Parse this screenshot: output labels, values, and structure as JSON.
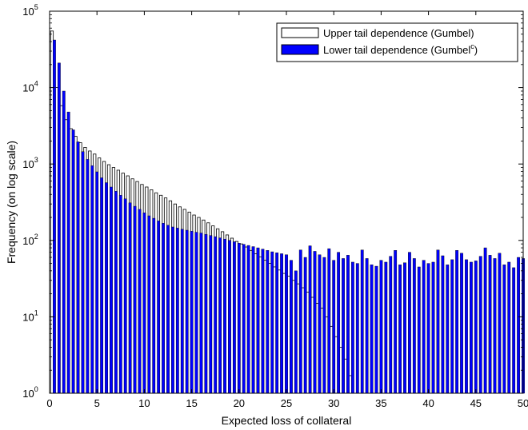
{
  "chart_data": {
    "type": "bar",
    "xlabel": "Expected loss of collateral",
    "ylabel": "Frequency (on log scale)",
    "yscale": "log",
    "xlim": [
      0,
      50
    ],
    "ylim": [
      1,
      100000
    ],
    "x_ticks": [
      "0",
      "5",
      "10",
      "15",
      "20",
      "25",
      "30",
      "35",
      "40",
      "45",
      "50"
    ],
    "y_ticks": [
      {
        "base": "10",
        "exp": "0"
      },
      {
        "base": "10",
        "exp": "1"
      },
      {
        "base": "10",
        "exp": "2"
      },
      {
        "base": "10",
        "exp": "3"
      },
      {
        "base": "10",
        "exp": "4"
      },
      {
        "base": "10",
        "exp": "5"
      }
    ],
    "grid": false,
    "legend_position": "top-right",
    "series": [
      {
        "name": "Upper tail dependence (Gumbel)",
        "legend_text": "Upper tail dependence (Gumbel)",
        "color": "#ffffff",
        "edge_color": "#000000",
        "x": [
          0.25,
          0.75,
          1.25,
          1.75,
          2.25,
          2.75,
          3.25,
          3.75,
          4.25,
          4.75,
          5.25,
          5.75,
          6.25,
          6.75,
          7.25,
          7.75,
          8.25,
          8.75,
          9.25,
          9.75,
          10.25,
          10.75,
          11.25,
          11.75,
          12.25,
          12.75,
          13.25,
          13.75,
          14.25,
          14.75,
          15.25,
          15.75,
          16.25,
          16.75,
          17.25,
          17.75,
          18.25,
          18.75,
          19.25,
          19.75,
          20.25,
          20.75,
          21.25,
          21.75,
          22.25,
          22.75,
          23.25,
          23.75,
          24.25,
          24.75,
          25.25,
          25.75,
          26.25,
          26.75,
          27.25,
          27.75,
          28.25,
          28.75,
          29.25,
          29.75,
          30.25,
          30.75,
          31.25,
          31.75
        ],
        "values": [
          55000,
          10000,
          5800,
          3800,
          2900,
          2300,
          1900,
          1650,
          1480,
          1350,
          1200,
          1080,
          980,
          900,
          830,
          760,
          700,
          640,
          590,
          540,
          500,
          460,
          420,
          390,
          360,
          330,
          300,
          275,
          255,
          235,
          215,
          200,
          185,
          170,
          155,
          142,
          130,
          118,
          107,
          97,
          90,
          82,
          74,
          67,
          61,
          55,
          50,
          45,
          41,
          37,
          34,
          30,
          27,
          24,
          21,
          18,
          15,
          13,
          10,
          7.5,
          5.5,
          4,
          2.8,
          1.7
        ]
      },
      {
        "name": "Lower tail dependence (Gumbel^c)",
        "legend_text": "Lower tail dependence (Gumbel",
        "legend_superscript": "c",
        "legend_suffix": ")",
        "color": "#0000ff",
        "edge_color": "#000000",
        "x": [
          0.5,
          1.0,
          1.5,
          2.0,
          2.5,
          3.0,
          3.5,
          4.0,
          4.5,
          5.0,
          5.5,
          6.0,
          6.5,
          7.0,
          7.5,
          8.0,
          8.5,
          9.0,
          9.5,
          10.0,
          10.5,
          11.0,
          11.5,
          12.0,
          12.5,
          13.0,
          13.5,
          14.0,
          14.5,
          15.0,
          15.5,
          16.0,
          16.5,
          17.0,
          17.5,
          18.0,
          18.5,
          19.0,
          19.5,
          20.0,
          20.5,
          21.0,
          21.5,
          22.0,
          22.5,
          23.0,
          23.5,
          24.0,
          24.5,
          25.0,
          25.5,
          26.0,
          26.5,
          27.0,
          27.5,
          28.0,
          28.5,
          29.0,
          29.5,
          30.0,
          30.5,
          31.0,
          31.5,
          32.0,
          32.5,
          33.0,
          33.5,
          34.0,
          34.5,
          35.0,
          35.5,
          36.0,
          36.5,
          37.0,
          37.5,
          38.0,
          38.5,
          39.0,
          39.5,
          40.0,
          40.5,
          41.0,
          41.5,
          42.0,
          42.5,
          43.0,
          43.5,
          44.0,
          44.5,
          45.0,
          45.5,
          46.0,
          46.5,
          47.0,
          47.5,
          48.0,
          48.5,
          49.0,
          49.5,
          50.0
        ],
        "values": [
          42000,
          21000,
          9000,
          4800,
          2800,
          1950,
          1450,
          1150,
          950,
          790,
          660,
          570,
          500,
          440,
          390,
          350,
          310,
          280,
          255,
          230,
          210,
          195,
          180,
          168,
          158,
          150,
          145,
          140,
          136,
          132,
          128,
          125,
          120,
          116,
          112,
          108,
          104,
          100,
          96,
          92,
          89,
          86,
          83,
          80,
          77,
          74,
          71,
          69,
          67,
          65,
          55,
          40,
          75,
          60,
          85,
          72,
          65,
          60,
          78,
          55,
          70,
          58,
          64,
          52,
          50,
          75,
          58,
          48,
          46,
          55,
          52,
          62,
          74,
          48,
          51,
          70,
          58,
          45,
          55,
          50,
          52,
          75,
          63,
          48,
          56,
          74,
          68,
          56,
          52,
          54,
          62,
          80,
          64,
          58,
          68,
          48,
          52,
          44,
          60,
          58
        ]
      }
    ]
  }
}
